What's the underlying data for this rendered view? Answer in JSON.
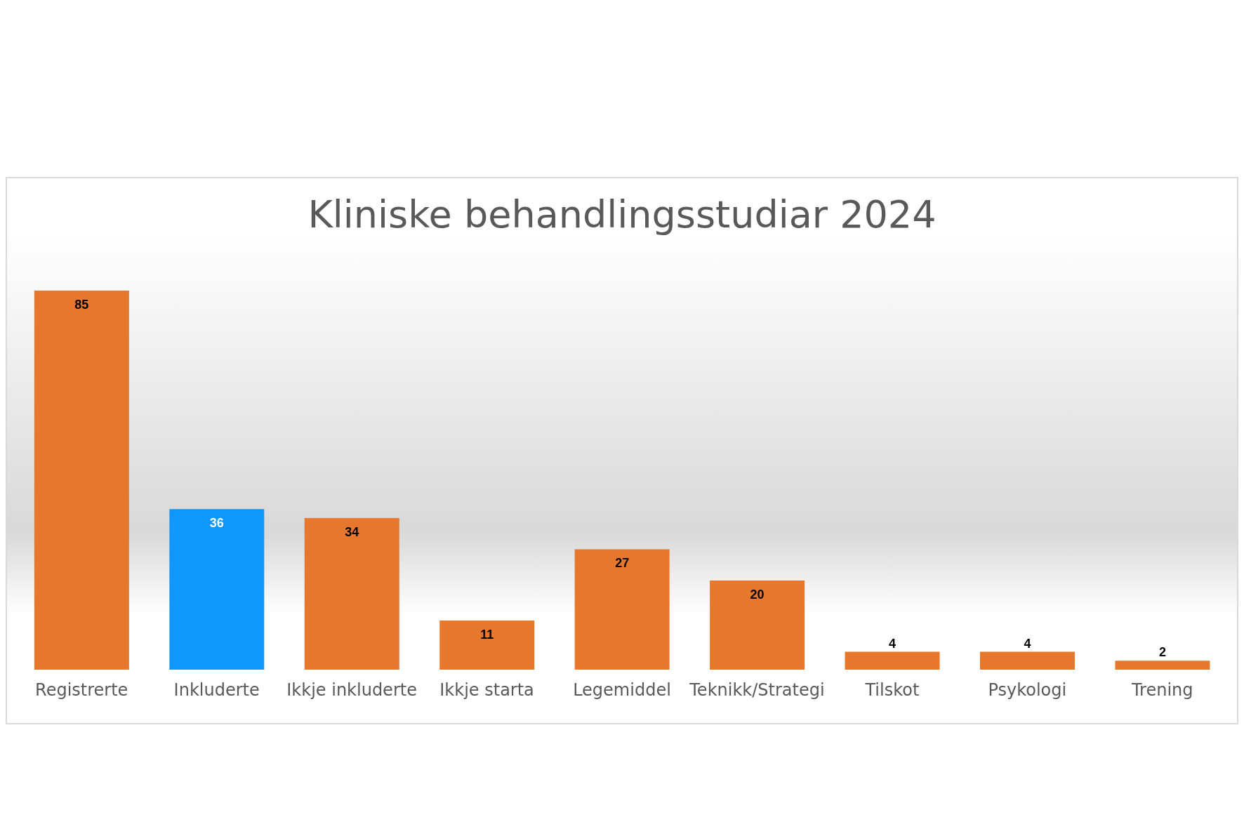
{
  "chart_data": {
    "type": "bar",
    "title": "Kliniske behandlingsstudiar 2024",
    "categories": [
      "Registrerte",
      "Inkluderte",
      "Ikkje inkluderte",
      "Ikkje starta",
      "Legemiddel",
      "Teknikk/Strategi",
      "Tilskot",
      "Psykologi",
      "Trening"
    ],
    "values": [
      85,
      36,
      34,
      11,
      27,
      20,
      4,
      4,
      2
    ],
    "colors": [
      "#e8772e",
      "#1097fd",
      "#e8772e",
      "#e8772e",
      "#e8772e",
      "#e8772e",
      "#e8772e",
      "#e8772e",
      "#e8772e"
    ],
    "data_labels": true
  }
}
